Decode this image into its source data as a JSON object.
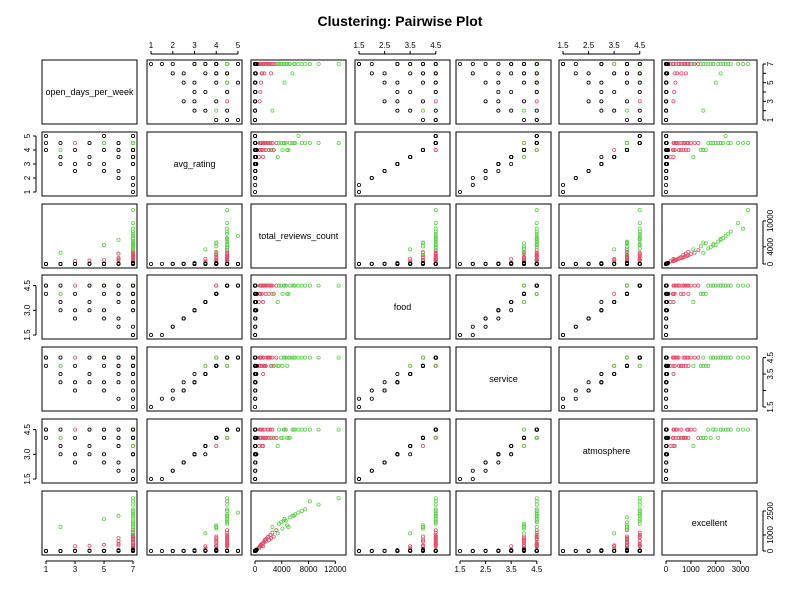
{
  "chart_data": {
    "type": "scatter",
    "title": "Clustering: Pairwise Plot",
    "variables": [
      {
        "name": "open_days_per_week",
        "range": [
          1,
          7
        ],
        "ticks": [
          1,
          3,
          5,
          7
        ],
        "tick_labels": [
          "1",
          "3",
          "5",
          "7"
        ],
        "top_ticks": [],
        "top_tick_labels": [],
        "side_ticks": [
          1,
          2,
          3,
          4,
          5,
          6,
          7
        ],
        "side_tick_labels": [
          "1",
          "",
          "3",
          "",
          "5",
          "",
          "7"
        ]
      },
      {
        "name": "avg_rating",
        "range": [
          1,
          5
        ],
        "ticks": [
          1,
          2,
          3,
          4,
          5
        ],
        "tick_labels": [
          "1",
          "2",
          "3",
          "4",
          "5"
        ]
      },
      {
        "name": "total_reviews_count",
        "range": [
          0,
          13000
        ],
        "ticks": [
          0,
          4000,
          8000,
          12000
        ],
        "tick_labels": [
          "0",
          "4000",
          "8000",
          "12000"
        ],
        "side_ticks": [
          0,
          4000,
          10000
        ],
        "side_tick_labels": [
          "0",
          "4000",
          "10000"
        ]
      },
      {
        "name": "food",
        "range": [
          1.5,
          4.9
        ],
        "ticks": [
          1.5,
          2.5,
          3.5,
          4.5
        ],
        "tick_labels": [
          "1.5",
          "2.5",
          "3.5",
          "4.5"
        ],
        "side_ticks": [
          1.5,
          3.0,
          4.5
        ],
        "side_tick_labels": [
          "1.5",
          "3.0",
          "4.5"
        ]
      },
      {
        "name": "service",
        "range": [
          1.5,
          4.9
        ],
        "ticks": [
          1.5,
          2.5,
          3.5,
          4.5
        ],
        "tick_labels": [
          "1.5",
          "2.5",
          "3.5",
          "4.5"
        ],
        "side_ticks": [
          1.5,
          2.5,
          3.5,
          4.5
        ],
        "side_tick_labels": [
          "1.5",
          "",
          "3.5",
          "4.5"
        ]
      },
      {
        "name": "atmosphere",
        "range": [
          1.5,
          4.9
        ],
        "ticks": [
          1.5,
          2.5,
          3.5,
          4.5
        ],
        "tick_labels": [
          "1.5",
          "2.5",
          "3.5",
          "4.5"
        ],
        "side_ticks": [
          1.5,
          3.0,
          4.5
        ],
        "side_tick_labels": [
          "1.5",
          "3.0",
          "4.5"
        ]
      },
      {
        "name": "excellent",
        "range": [
          0,
          3500
        ],
        "ticks": [
          0,
          1000,
          2000,
          3000
        ],
        "tick_labels": [
          "0",
          "1000",
          "2000",
          "3000"
        ],
        "side_ticks": [
          0,
          1000,
          2500
        ],
        "side_tick_labels": [
          "0",
          "1000",
          "2500"
        ]
      }
    ],
    "clusters": [
      {
        "id": 1,
        "color": "#000000"
      },
      {
        "id": 2,
        "color": "#DF536B"
      },
      {
        "id": 3,
        "color": "#61D04F"
      }
    ],
    "points": [
      [
        7,
        4.5,
        1200,
        4.5,
        4.5,
        4.0,
        500,
        2
      ],
      [
        7,
        4.5,
        900,
        4.5,
        4.5,
        4.5,
        400,
        2
      ],
      [
        7,
        4.0,
        800,
        4.0,
        4.0,
        4.0,
        300,
        2
      ],
      [
        7,
        4.5,
        1500,
        4.5,
        4.0,
        4.0,
        700,
        2
      ],
      [
        6,
        4.5,
        1100,
        4.5,
        4.5,
        4.5,
        450,
        2
      ],
      [
        7,
        4.0,
        700,
        4.0,
        4.5,
        4.0,
        280,
        2
      ],
      [
        7,
        4.5,
        2000,
        4.5,
        4.5,
        4.5,
        900,
        2
      ],
      [
        7,
        4.0,
        1300,
        4.5,
        4.0,
        4.0,
        520,
        2
      ],
      [
        7,
        4.5,
        1700,
        4.5,
        4.5,
        4.0,
        760,
        2
      ],
      [
        6,
        4.0,
        1000,
        4.0,
        4.0,
        3.5,
        350,
        2
      ],
      [
        7,
        3.5,
        600,
        3.5,
        4.0,
        3.5,
        180,
        2
      ],
      [
        7,
        4.5,
        2300,
        4.5,
        4.5,
        4.5,
        1000,
        2
      ],
      [
        5,
        4.5,
        900,
        4.5,
        4.5,
        4.0,
        380,
        2
      ],
      [
        7,
        4.0,
        1600,
        4.0,
        4.0,
        4.0,
        600,
        2
      ],
      [
        7,
        4.5,
        2600,
        4.5,
        4.5,
        4.5,
        1150,
        2
      ],
      [
        4,
        4.5,
        800,
        4.5,
        4.5,
        4.5,
        330,
        2
      ],
      [
        7,
        4.0,
        2100,
        4.0,
        4.5,
        4.0,
        700,
        2
      ],
      [
        6,
        4.5,
        1400,
        4.5,
        4.0,
        4.5,
        620,
        2
      ],
      [
        7,
        4.5,
        3200,
        4.5,
        4.5,
        4.0,
        1300,
        2
      ],
      [
        7,
        3.5,
        1200,
        3.5,
        3.5,
        3.5,
        300,
        2
      ],
      [
        7,
        4.5,
        1900,
        4.5,
        4.5,
        4.5,
        850,
        2
      ],
      [
        6,
        4.0,
        2400,
        4.5,
        4.0,
        4.0,
        800,
        2
      ],
      [
        7,
        4.0,
        2800,
        4.0,
        4.0,
        4.0,
        900,
        2
      ],
      [
        3,
        4.5,
        700,
        4.5,
        4.5,
        4.5,
        300,
        2
      ],
      [
        7,
        4.5,
        6000,
        4.5,
        4.5,
        4.5,
        2300,
        3
      ],
      [
        7,
        4.5,
        7500,
        4.5,
        4.5,
        4.5,
        2600,
        3
      ],
      [
        7,
        4.5,
        5200,
        4.5,
        4.5,
        4.0,
        2100,
        3
      ],
      [
        7,
        4.0,
        4800,
        4.0,
        4.0,
        4.0,
        1600,
        3
      ],
      [
        7,
        4.5,
        9500,
        4.5,
        4.5,
        4.5,
        2900,
        3
      ],
      [
        7,
        4.5,
        12500,
        4.5,
        4.5,
        4.5,
        3300,
        3
      ],
      [
        7,
        4.5,
        4300,
        4.5,
        4.5,
        4.5,
        1900,
        3
      ],
      [
        7,
        5.0,
        6500,
        4.5,
        4.5,
        4.5,
        2400,
        3
      ],
      [
        6,
        4.5,
        5600,
        4.5,
        4.5,
        4.5,
        2200,
        3
      ],
      [
        7,
        4.0,
        5000,
        4.0,
        4.5,
        4.0,
        1500,
        3
      ],
      [
        7,
        4.5,
        3900,
        4.5,
        4.5,
        4.0,
        1800,
        3
      ],
      [
        7,
        4.5,
        8200,
        4.5,
        4.5,
        4.5,
        3100,
        3
      ],
      [
        7,
        4.0,
        4100,
        4.0,
        4.0,
        4.0,
        1400,
        3
      ],
      [
        7,
        4.5,
        3600,
        4.5,
        4.0,
        4.5,
        1700,
        3
      ],
      [
        5,
        4.5,
        4400,
        4.5,
        4.5,
        4.5,
        2000,
        3
      ],
      [
        7,
        4.5,
        7000,
        4.5,
        4.5,
        4.5,
        2500,
        3
      ],
      [
        2,
        4.0,
        2600,
        4.0,
        4.0,
        4.0,
        1500,
        3
      ],
      [
        7,
        4.5,
        4600,
        4.5,
        4.5,
        4.5,
        1900,
        3
      ],
      [
        7,
        3.5,
        3400,
        3.5,
        4.0,
        3.5,
        1100,
        3
      ],
      [
        7,
        4.5,
        5800,
        4.5,
        4.5,
        4.5,
        2200,
        3
      ],
      [
        7,
        4.0,
        50,
        4.0,
        4.0,
        4.0,
        20,
        1
      ],
      [
        6,
        3.5,
        40,
        3.5,
        3.5,
        3.5,
        15,
        1
      ],
      [
        5,
        4.0,
        30,
        4.0,
        4.0,
        4.0,
        10,
        1
      ],
      [
        7,
        3.0,
        80,
        3.0,
        3.0,
        3.0,
        25,
        1
      ],
      [
        4,
        4.5,
        25,
        4.5,
        4.5,
        4.5,
        12,
        1
      ],
      [
        7,
        5.0,
        20,
        4.5,
        4.5,
        4.5,
        10,
        1
      ],
      [
        3,
        4.0,
        15,
        4.0,
        4.0,
        4.0,
        6,
        1
      ],
      [
        2,
        3.5,
        10,
        3.5,
        3.5,
        3.5,
        4,
        1
      ],
      [
        1,
        4.0,
        12,
        4.0,
        4.0,
        4.0,
        5,
        1
      ],
      [
        6,
        2.5,
        60,
        2.5,
        3.0,
        2.5,
        10,
        1
      ],
      [
        7,
        2.0,
        40,
        2.0,
        2.5,
        2.0,
        5,
        1
      ],
      [
        7,
        1.5,
        30,
        1.5,
        2.0,
        1.5,
        3,
        1
      ],
      [
        5,
        3.0,
        35,
        3.0,
        3.0,
        3.0,
        8,
        1
      ],
      [
        4,
        3.5,
        45,
        3.5,
        3.5,
        3.5,
        14,
        1
      ],
      [
        6,
        4.5,
        70,
        4.5,
        4.5,
        4.5,
        30,
        1
      ],
      [
        3,
        2.5,
        20,
        2.5,
        2.5,
        2.5,
        5,
        1
      ],
      [
        2,
        4.5,
        8,
        4.5,
        4.5,
        4.5,
        4,
        1
      ],
      [
        1,
        5.0,
        5,
        4.5,
        4.5,
        4.5,
        3,
        1
      ],
      [
        7,
        3.5,
        150,
        3.5,
        3.5,
        3.0,
        40,
        1
      ],
      [
        7,
        1.0,
        10,
        1.5,
        1.5,
        1.5,
        0,
        1
      ],
      [
        6,
        2.0,
        25,
        2.0,
        2.0,
        2.0,
        4,
        1
      ],
      [
        5,
        5.0,
        15,
        4.5,
        4.5,
        4.5,
        8,
        1
      ],
      [
        4,
        3.0,
        30,
        3.0,
        3.0,
        3.0,
        7,
        1
      ],
      [
        3,
        3.0,
        18,
        3.0,
        3.0,
        3.0,
        5,
        1
      ],
      [
        7,
        4.0,
        250,
        4.0,
        4.0,
        4.0,
        90,
        1
      ],
      [
        6,
        4.0,
        120,
        4.0,
        4.0,
        4.0,
        50,
        1
      ],
      [
        2,
        3.0,
        12,
        3.0,
        3.0,
        3.0,
        3,
        1
      ],
      [
        1,
        4.5,
        6,
        4.5,
        4.5,
        4.5,
        3,
        1
      ],
      [
        7,
        3.0,
        200,
        3.0,
        3.5,
        3.0,
        45,
        1
      ],
      [
        5,
        2.5,
        40,
        2.5,
        2.5,
        2.5,
        6,
        1
      ]
    ]
  }
}
